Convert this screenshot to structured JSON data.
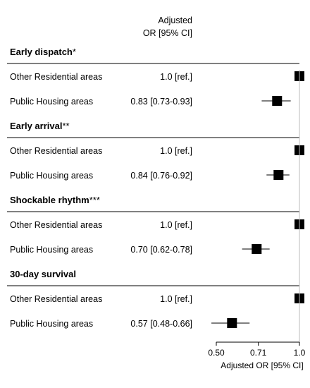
{
  "header": {
    "col_line1": "Adjusted",
    "col_line2": "OR [95% CI]"
  },
  "chart_data": {
    "type": "forest",
    "xlabel": "Adjusted OR [95% CI]",
    "xlim": [
      0.5,
      1.0
    ],
    "xticks": [
      0.5,
      0.71,
      1.0
    ],
    "xtick_labels": [
      "0.50",
      "0.71",
      "1.0"
    ],
    "log_scale": true,
    "reference_line": 1.0,
    "groups": [
      {
        "title": "Early dispatch",
        "title_mark": "*",
        "rows": [
          {
            "label": "Other Residential areas",
            "or_text": "1.0 [ref.]",
            "or": 1.0,
            "lo": null,
            "hi": null
          },
          {
            "label": "Public Housing areas",
            "or_text": "0.83 [0.73-0.93]",
            "or": 0.83,
            "lo": 0.73,
            "hi": 0.93
          }
        ]
      },
      {
        "title": "Early arrival",
        "title_mark": "**",
        "rows": [
          {
            "label": "Other Residential areas",
            "or_text": "1.0 [ref.]",
            "or": 1.0,
            "lo": null,
            "hi": null
          },
          {
            "label": "Public Housing areas",
            "or_text": "0.84 [0.76-0.92]",
            "or": 0.84,
            "lo": 0.76,
            "hi": 0.92
          }
        ]
      },
      {
        "title": "Shockable rhythm",
        "title_mark": "***",
        "rows": [
          {
            "label": "Other Residential areas",
            "or_text": "1.0 [ref.]",
            "or": 1.0,
            "lo": null,
            "hi": null
          },
          {
            "label": "Public Housing areas",
            "or_text": "0.70 [0.62-0.78]",
            "or": 0.7,
            "lo": 0.62,
            "hi": 0.78
          }
        ]
      },
      {
        "title": "30-day survival",
        "title_mark": "",
        "rows": [
          {
            "label": "Other Residential areas",
            "or_text": "1.0 [ref.]",
            "or": 1.0,
            "lo": null,
            "hi": null
          },
          {
            "label": "Public Housing areas",
            "or_text": "0.57 [0.48-0.66]",
            "or": 0.57,
            "lo": 0.48,
            "hi": 0.66
          }
        ]
      }
    ]
  }
}
